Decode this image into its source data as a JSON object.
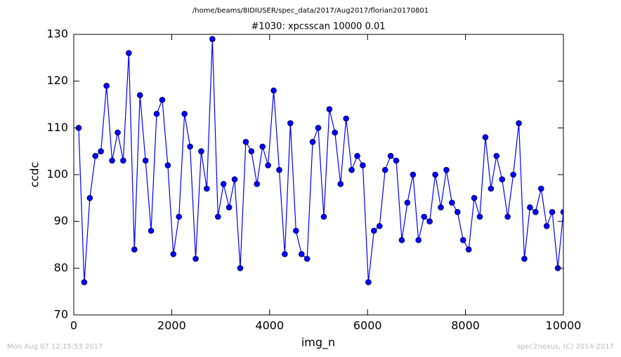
{
  "chart_data": {
    "type": "line",
    "suptitle": "/home/beams/8IDIUSER/spec_data/2017/Aug2017/florian20170801",
    "title": "#1030: xpcsscan 10000 0.01",
    "xlabel": "img_n",
    "ylabel": "ccdc",
    "footer_left": "Mon Aug 07 12:15:53 2017",
    "footer_right": "spec2nexus, (C) 2014-2017",
    "x": [
      100,
      214,
      328,
      441,
      555,
      669,
      783,
      897,
      1010,
      1124,
      1238,
      1352,
      1466,
      1579,
      1693,
      1807,
      1921,
      2034,
      2148,
      2262,
      2376,
      2490,
      2603,
      2717,
      2831,
      2945,
      3059,
      3172,
      3286,
      3400,
      3514,
      3628,
      3741,
      3855,
      3969,
      4083,
      4197,
      4310,
      4424,
      4538,
      4652,
      4766,
      4879,
      4993,
      5107,
      5221,
      5334,
      5448,
      5562,
      5676,
      5790,
      5903,
      6017,
      6131,
      6245,
      6359,
      6472,
      6586,
      6700,
      6814,
      6928,
      7041,
      7155,
      7269,
      7383,
      7497,
      7610,
      7724,
      7838,
      7952,
      8066,
      8179,
      8293,
      8407,
      8521,
      8634,
      8748,
      8862,
      8976,
      9090,
      9203,
      9317,
      9431,
      9545,
      9659,
      9772,
      9886,
      10000
    ],
    "series": [
      {
        "color": "#0000ff",
        "values": [
          110,
          77,
          95,
          104,
          105,
          119,
          103,
          109,
          103,
          126,
          84,
          117,
          103,
          88,
          113,
          116,
          102,
          83,
          91,
          113,
          106,
          82,
          105,
          97,
          129,
          91,
          98,
          93,
          99,
          80,
          107,
          105,
          98,
          106,
          102,
          118,
          101,
          83,
          111,
          88,
          83,
          82,
          107,
          110,
          91,
          114,
          109,
          98,
          112,
          101,
          104,
          102,
          77,
          88,
          89,
          101,
          104,
          103,
          86,
          94,
          100,
          86,
          91,
          90,
          100,
          93,
          101,
          94,
          92,
          86,
          84,
          95,
          91,
          108,
          97,
          104,
          99,
          91,
          100,
          111,
          82,
          93,
          92,
          97,
          89,
          92,
          80,
          92
        ]
      }
    ],
    "xlim": [
      0,
      10000
    ],
    "xticks": [
      0,
      2000,
      4000,
      6000,
      8000,
      10000
    ],
    "ylim": [
      70,
      130
    ],
    "yticks": [
      70,
      80,
      90,
      100,
      110,
      120,
      130
    ],
    "grid": false
  }
}
